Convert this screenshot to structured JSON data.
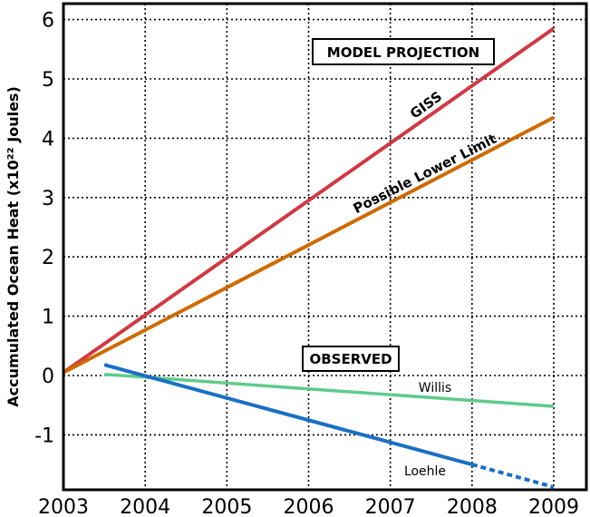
{
  "chart_data": {
    "type": "line",
    "title": "",
    "xlabel": "",
    "ylabel": "Accumulated Ocean Heat (x10²² Joules)",
    "xlim": [
      2003,
      2009
    ],
    "ylim": [
      -1.95,
      6.3
    ],
    "x_ticks": [
      "2003",
      "2004",
      "2005",
      "2006",
      "2007",
      "2008",
      "2009"
    ],
    "y_ticks": [
      "6",
      "5",
      "4",
      "3",
      "2",
      "1",
      "0",
      "-1"
    ],
    "grid": true,
    "annotations": [
      "MODEL PROJECTION",
      "OBSERVED"
    ],
    "series": [
      {
        "name": "GISS",
        "color": "#cc3b45",
        "x": [
          2003,
          2009
        ],
        "y": [
          0.05,
          5.85
        ]
      },
      {
        "name": "Possible Lower Limit",
        "color": "#cc6b00",
        "x": [
          2003,
          2009
        ],
        "y": [
          0.05,
          4.35
        ]
      },
      {
        "name": "Willis",
        "color": "#5ecb8b",
        "x": [
          2003.5,
          2009
        ],
        "y": [
          0.02,
          -0.52
        ]
      },
      {
        "name": "Loehle",
        "color": "#1a6fc4",
        "x": [
          2003.5,
          2008.0
        ],
        "y": [
          0.18,
          -1.5
        ]
      },
      {
        "name": "",
        "color": "#1a6fc4",
        "dashed": true,
        "x": [
          2008.0,
          2009
        ],
        "y": [
          -1.5,
          -1.88
        ]
      }
    ]
  }
}
